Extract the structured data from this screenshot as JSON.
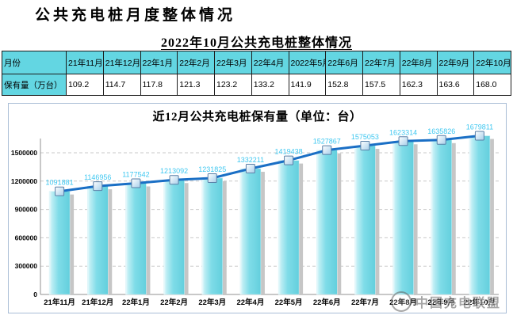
{
  "page": {
    "main_title": "公共充电桩月度整体情况",
    "subtitle": "2022年10月公共充电桩整体情况"
  },
  "table": {
    "row_headers": [
      "月份",
      "保有量（万台）"
    ],
    "columns": [
      "21年11月",
      "21年12月",
      "22年1月",
      "22年2月",
      "22年3月",
      "22年4月",
      "2022年5月",
      "22年6月",
      "22年7月",
      "22年8月",
      "22年9月",
      "22年10月"
    ],
    "values": [
      "109.2",
      "114.7",
      "117.8",
      "121.3",
      "123.2",
      "133.2",
      "141.9",
      "152.8",
      "157.5",
      "162.3",
      "163.6",
      "168.0"
    ]
  },
  "chart_data": {
    "type": "bar",
    "title": "近12月公共充电桩保有量（单位：台）",
    "categories": [
      "21年11月",
      "21年12月",
      "22年1月",
      "22年2月",
      "22年3月",
      "22年4月",
      "22年5月",
      "22年6月",
      "22年7月",
      "22年8月",
      "22年9月",
      "22年10月"
    ],
    "values": [
      1091881,
      1146956,
      1177542,
      1213092,
      1231825,
      1332211,
      1419438,
      1527867,
      1575053,
      1623314,
      1635826,
      1679811
    ],
    "data_labels": [
      "1091881",
      "1146956",
      "1177542",
      "1213092",
      "1231825",
      "1332211",
      "1419438",
      "1527867",
      "1575053",
      "1623314",
      "1635826",
      "1679811"
    ],
    "overlay_line": true,
    "ylim": [
      0,
      1800000
    ],
    "yticks": [
      0,
      300000,
      600000,
      900000,
      1200000,
      1500000
    ],
    "ytick_labels": [
      "0",
      "300000",
      "600000",
      "900000",
      "1200000",
      "1500000"
    ],
    "grid": "dashed-horizontal",
    "legend": "none",
    "colors": {
      "bar_fill": "#7FDCE8",
      "bar_shadow": "#C6C6C6",
      "line": "#1A6FC5",
      "marker_border": "#5A7FA6",
      "data_label": "#3EC7F0",
      "grid": "#C9C9C9",
      "axis": "#909090",
      "table_header_bg": "#63D6E2",
      "chart_border": "#A9BDD6"
    }
  },
  "watermark": {
    "label": "中国充电联盟"
  }
}
